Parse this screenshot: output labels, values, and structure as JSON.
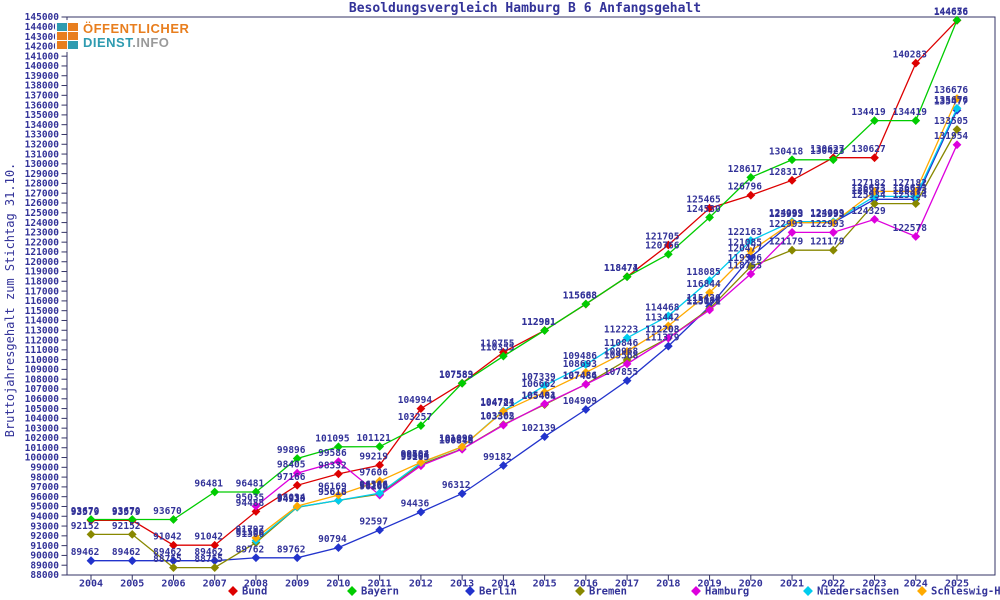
{
  "logo": {
    "line1": "ÖFFENTLICHER",
    "line2a": "DIENST",
    "line2b": ".INFO"
  },
  "chart_data": {
    "type": "line",
    "title": "Besoldungsvergleich Hamburg B 6 Anfangsgehalt",
    "ylabel": "Bruttojahresgehalt zum Stichtag 31.10.",
    "xlabel": "",
    "x": [
      "2004",
      "2005",
      "2006",
      "2007",
      "2008",
      "2009",
      "2010",
      "2011",
      "2012",
      "2013",
      "2014",
      "2015",
      "2016",
      "2017",
      "2018",
      "2019",
      "2020",
      "2021",
      "2022",
      "2023",
      "2024",
      "2025"
    ],
    "ylim": [
      88000,
      145000
    ],
    "ytick_step": 1000,
    "grid": false,
    "legend_position": "bottom",
    "axis_color": "#333366",
    "label_color": "#333399",
    "series": [
      {
        "name": "Bund",
        "color": "#dd0000",
        "values": [
          93579,
          93579,
          91042,
          91042,
          94488,
          97166,
          98332,
          99219,
          104994,
          107589,
          110755,
          112991,
          115668,
          118474,
          121705,
          125465,
          126796,
          128317,
          130627,
          130627,
          140283,
          144656
        ]
      },
      {
        "name": "Bayern",
        "color": "#00cc00",
        "values": [
          93670,
          93670,
          93670,
          96481,
          96481,
          99896,
          101095,
          101121,
          103257,
          107583,
          110355,
          112981,
          115688,
          118471,
          120766,
          124530,
          128617,
          130418,
          130423,
          134419,
          134419,
          144676
        ]
      },
      {
        "name": "Berlin",
        "color": "#2233cc",
        "values": [
          89462,
          89462,
          89462,
          89462,
          89762,
          89762,
          90794,
          92597,
          94436,
          96312,
          99182,
          102139,
          104909,
          107855,
          111379,
          115430,
          120477,
          123993,
          123993,
          126373,
          126373,
          135477
        ]
      },
      {
        "name": "Bremen",
        "color": "#888800",
        "values": [
          92152,
          92152,
          88755,
          88755,
          91306,
          94920,
          95616,
          96266,
          99304,
          100873,
          103362,
          105404,
          107486,
          109968,
          112208,
          115188,
          119506,
          121179,
          121179,
          125934,
          125934,
          133505
        ]
      },
      {
        "name": "Hamburg",
        "color": "#dd00dd",
        "values": [
          null,
          null,
          null,
          null,
          95035,
          98405,
          99586,
          96166,
          99163,
          100846,
          103305,
          105481,
          107484,
          109568,
          112203,
          115071,
          118753,
          122993,
          122993,
          124329,
          122578,
          131954
        ]
      },
      {
        "name": "Niedersachsen",
        "color": "#00ccee",
        "values": [
          null,
          null,
          null,
          null,
          91506,
          94933,
          95618,
          96366,
          99463,
          101090,
          104784,
          107339,
          109486,
          112223,
          114468,
          118085,
          122163,
          124099,
          124099,
          126673,
          126673,
          135676
        ]
      },
      {
        "name": "Schleswig-Holstein",
        "color": "#ffaa00",
        "values": [
          null,
          null,
          null,
          null,
          91797,
          95034,
          96169,
          97606,
          99504,
          101099,
          104721,
          106662,
          108693,
          110846,
          113442,
          116844,
          121085,
          123993,
          123993,
          127182,
          127182,
          136676
        ]
      }
    ]
  }
}
